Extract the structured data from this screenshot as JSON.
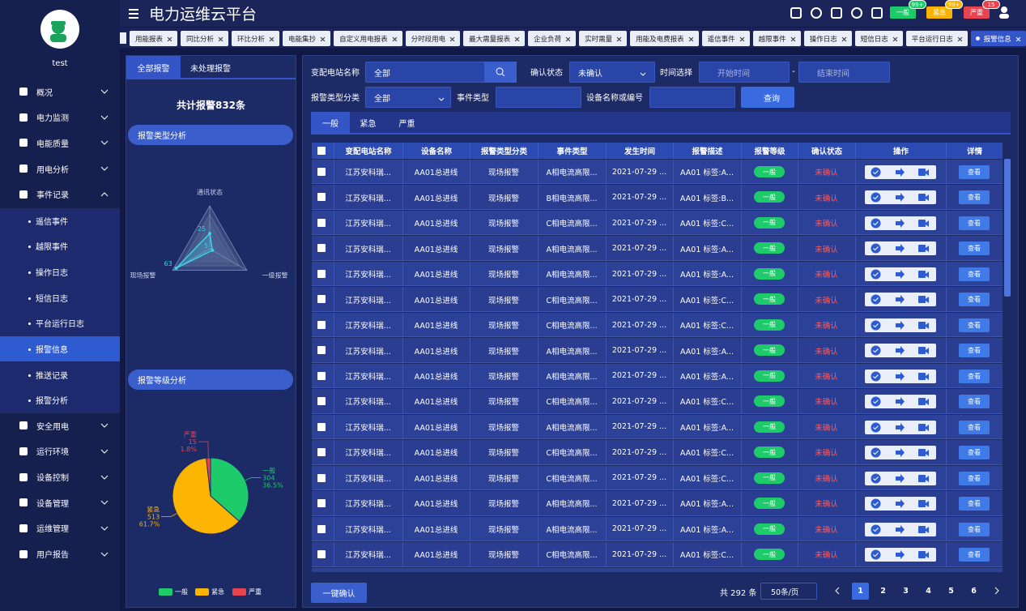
{
  "header": {
    "title": "电力运维云平台",
    "badges": [
      {
        "label": "一般",
        "count": "99+"
      },
      {
        "label": "紧急",
        "count": "99+"
      },
      {
        "label": "严重",
        "count": 15
      }
    ]
  },
  "sidebar": {
    "user": "test",
    "menu": [
      {
        "label": "概况"
      },
      {
        "label": "电力监测"
      },
      {
        "label": "电能质量"
      },
      {
        "label": "用电分析"
      },
      {
        "label": "事件记录",
        "children": [
          "遥信事件",
          "越限事件",
          "操作日志",
          "短信日志",
          "平台运行日志",
          "报警信息",
          "推送记录",
          "报警分析"
        ]
      },
      {
        "label": "安全用电"
      },
      {
        "label": "运行环境"
      },
      {
        "label": "设备控制"
      },
      {
        "label": "设备管理"
      },
      {
        "label": "运维管理"
      },
      {
        "label": "用户报告"
      }
    ]
  },
  "tabs": [
    "用能报表",
    "同比分析",
    "环比分析",
    "电能集抄",
    "自定义用电报表",
    "分时段用电",
    "最大需量报表",
    "企业负荷",
    "实时需量",
    "用能及电费报表",
    "遥信事件",
    "越限事件",
    "操作日志",
    "短信日志",
    "平台运行日志",
    "报警信息"
  ],
  "left_panel": {
    "tabs": [
      "全部报警",
      "未处理报警"
    ],
    "total": "共计报警832条",
    "sections": [
      "报警类型分析",
      "报警等级分析"
    ]
  },
  "chart_data": [
    {
      "type": "radar",
      "indicators": [
        "通讯状态",
        "一级报警",
        "现场报警"
      ],
      "values": [
        25,
        5,
        63
      ],
      "rlim": [
        0,
        70
      ],
      "color": "#37d3e6"
    },
    {
      "type": "pie",
      "categories": [
        "一般",
        "紧急",
        "严重"
      ],
      "values": [
        304,
        513,
        15
      ],
      "percent_labels": [
        "36.5%",
        "61.7%",
        "1.8%"
      ],
      "colors": [
        "#1ecb6a",
        "#fbb400",
        "#e8434f"
      ]
    }
  ],
  "filters": {
    "station_label": "变配电站名称",
    "station_value": "全部",
    "confirm_label": "确认状态",
    "confirm_value": "未确认",
    "time_label": "时间选择",
    "start_placeholder": "开始时间",
    "separator": "-",
    "end_placeholder": "结束时间",
    "type_label": "报警类型分类",
    "type_value": "全部",
    "event_label": "事件类型",
    "device_label": "设备名称或编号",
    "search": "查询"
  },
  "level_tabs": [
    "一般",
    "紧急",
    "严重"
  ],
  "table": {
    "columns": [
      "变配电站名称",
      "设备名称",
      "报警类型分类",
      "事件类型",
      "发生时间",
      "报警描述",
      "报警等级",
      "确认状态",
      "操作",
      "详情"
    ],
    "rows": [
      [
        "江苏安科瑞...",
        "AA01总进线",
        "现场报警",
        "A相电流高限...",
        "2021-07-29 ...",
        "AA01 标签:A...",
        "一般",
        "未确认",
        "查看"
      ],
      [
        "江苏安科瑞...",
        "AA01总进线",
        "现场报警",
        "B相电流高限...",
        "2021-07-29 ...",
        "AA01 标签:B...",
        "一般",
        "未确认",
        "查看"
      ],
      [
        "江苏安科瑞...",
        "AA01总进线",
        "现场报警",
        "C相电流高限...",
        "2021-07-29 ...",
        "AA01 标签:C...",
        "一般",
        "未确认",
        "查看"
      ],
      [
        "江苏安科瑞...",
        "AA01总进线",
        "现场报警",
        "A相电流高限...",
        "2021-07-29 ...",
        "AA01 标签:A...",
        "一般",
        "未确认",
        "查看"
      ],
      [
        "江苏安科瑞...",
        "AA01总进线",
        "现场报警",
        "A相电流高限...",
        "2021-07-29 ...",
        "AA01 标签:A...",
        "一般",
        "未确认",
        "查看"
      ],
      [
        "江苏安科瑞...",
        "AA01总进线",
        "现场报警",
        "C相电流高限...",
        "2021-07-29 ...",
        "AA01 标签:C...",
        "一般",
        "未确认",
        "查看"
      ],
      [
        "江苏安科瑞...",
        "AA01总进线",
        "现场报警",
        "C相电流高限...",
        "2021-07-29 ...",
        "AA01 标签:C...",
        "一般",
        "未确认",
        "查看"
      ],
      [
        "江苏安科瑞...",
        "AA01总进线",
        "现场报警",
        "A相电流高限...",
        "2021-07-29 ...",
        "AA01 标签:A...",
        "一般",
        "未确认",
        "查看"
      ],
      [
        "江苏安科瑞...",
        "AA01总进线",
        "现场报警",
        "A相电流高限...",
        "2021-07-29 ...",
        "AA01 标签:A...",
        "一般",
        "未确认",
        "查看"
      ],
      [
        "江苏安科瑞...",
        "AA01总进线",
        "现场报警",
        "C相电流高限...",
        "2021-07-29 ...",
        "AA01 标签:C...",
        "一般",
        "未确认",
        "查看"
      ],
      [
        "江苏安科瑞...",
        "AA01总进线",
        "现场报警",
        "A相电流高限...",
        "2021-07-29 ...",
        "AA01 标签:A...",
        "一般",
        "未确认",
        "查看"
      ],
      [
        "江苏安科瑞...",
        "AA01总进线",
        "现场报警",
        "C相电流高限...",
        "2021-07-29 ...",
        "AA01 标签:C...",
        "一般",
        "未确认",
        "查看"
      ],
      [
        "江苏安科瑞...",
        "AA01总进线",
        "现场报警",
        "C相电流高限...",
        "2021-07-29 ...",
        "AA01 标签:C...",
        "一般",
        "未确认",
        "查看"
      ],
      [
        "江苏安科瑞...",
        "AA01总进线",
        "现场报警",
        "A相电流高限...",
        "2021-07-29 ...",
        "AA01 标签:A...",
        "一般",
        "未确认",
        "查看"
      ],
      [
        "江苏安科瑞...",
        "AA01总进线",
        "现场报警",
        "A相电流高限...",
        "2021-07-29 ...",
        "AA01 标签:A...",
        "一般",
        "未确认",
        "查看"
      ],
      [
        "江苏安科瑞...",
        "AA01总进线",
        "现场报警",
        "C相电流高限...",
        "2021-07-29 ...",
        "AA01 标签:C...",
        "一般",
        "未确认",
        "查看"
      ]
    ]
  },
  "pagination": {
    "total": "共 292 条",
    "page_size": "50条/页",
    "pages": [
      1,
      2,
      3,
      4,
      5,
      6
    ]
  },
  "confirm_all": "一键确认"
}
